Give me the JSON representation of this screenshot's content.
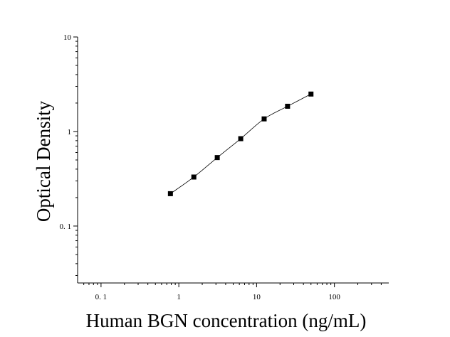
{
  "chart_data": {
    "type": "scatter",
    "title": "",
    "xlabel": "Human BGN concentration (ng/mL)",
    "ylabel": "Optical Density",
    "xscale": "log",
    "yscale": "log",
    "xlim": [
      0.05,
      500
    ],
    "ylim": [
      0.025,
      10
    ],
    "grid": false,
    "legend": "none",
    "x_ticks": [
      {
        "value": 0.1,
        "label": "0. 1"
      },
      {
        "value": 1,
        "label": "1"
      },
      {
        "value": 10,
        "label": "10"
      },
      {
        "value": 100,
        "label": "100"
      }
    ],
    "y_ticks": [
      {
        "value": 0.1,
        "label": "0. 1"
      },
      {
        "value": 1,
        "label": "1"
      },
      {
        "value": 10,
        "label": "10"
      }
    ],
    "series": [
      {
        "x": [
          0.78,
          1.56,
          3.12,
          6.25,
          12.5,
          25,
          50
        ],
        "y": [
          0.22,
          0.33,
          0.53,
          0.84,
          1.36,
          1.85,
          2.49
        ],
        "marker": "square",
        "fit_line": true,
        "color": "#000000"
      }
    ]
  }
}
